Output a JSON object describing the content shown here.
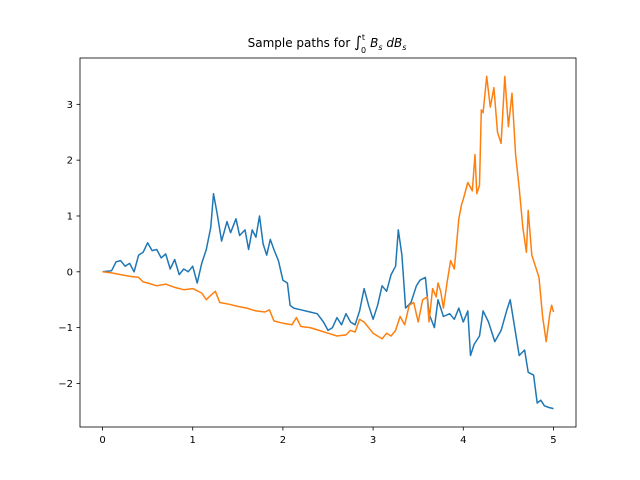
{
  "chart_data": {
    "type": "line",
    "title": "Sample paths for ∫₀ᵗ Bs dBs",
    "title_parts": {
      "prefix": "Sample paths for ",
      "integral": "∫",
      "upper": "t",
      "lower": "0",
      "integrand": "B",
      "integrand_sub": "s",
      "differential": " dB",
      "differential_sub": "s"
    },
    "xlabel": "",
    "ylabel": "",
    "xlim": [
      -0.25,
      5.25
    ],
    "ylim": [
      -2.78,
      3.83
    ],
    "xticks": [
      0,
      1,
      2,
      3,
      4,
      5
    ],
    "yticks": [
      -2,
      -1,
      0,
      1,
      2,
      3
    ],
    "grid": false,
    "legend": "none",
    "series": [
      {
        "color": "#1f77b4",
        "points": [
          [
            0,
            0
          ],
          [
            0.1,
            0.02
          ],
          [
            0.15,
            0.18
          ],
          [
            0.2,
            0.2
          ],
          [
            0.25,
            0.1
          ],
          [
            0.3,
            0.15
          ],
          [
            0.35,
            0.0
          ],
          [
            0.4,
            0.3
          ],
          [
            0.45,
            0.35
          ],
          [
            0.5,
            0.52
          ],
          [
            0.55,
            0.38
          ],
          [
            0.6,
            0.4
          ],
          [
            0.65,
            0.25
          ],
          [
            0.7,
            0.32
          ],
          [
            0.75,
            0.05
          ],
          [
            0.8,
            0.22
          ],
          [
            0.85,
            -0.05
          ],
          [
            0.9,
            0.05
          ],
          [
            0.95,
            0.0
          ],
          [
            1.0,
            0.1
          ],
          [
            1.05,
            -0.2
          ],
          [
            1.1,
            0.15
          ],
          [
            1.15,
            0.4
          ],
          [
            1.2,
            0.8
          ],
          [
            1.23,
            1.4
          ],
          [
            1.27,
            1.05
          ],
          [
            1.32,
            0.55
          ],
          [
            1.38,
            0.9
          ],
          [
            1.42,
            0.7
          ],
          [
            1.48,
            0.95
          ],
          [
            1.52,
            0.65
          ],
          [
            1.58,
            0.75
          ],
          [
            1.62,
            0.4
          ],
          [
            1.66,
            0.75
          ],
          [
            1.7,
            0.62
          ],
          [
            1.74,
            1.0
          ],
          [
            1.78,
            0.5
          ],
          [
            1.82,
            0.3
          ],
          [
            1.86,
            0.58
          ],
          [
            1.9,
            0.4
          ],
          [
            1.95,
            0.2
          ],
          [
            2.0,
            -0.15
          ],
          [
            2.05,
            -0.2
          ],
          [
            2.08,
            -0.6
          ],
          [
            2.12,
            -0.65
          ],
          [
            2.2,
            -0.68
          ],
          [
            2.3,
            -0.72
          ],
          [
            2.38,
            -0.75
          ],
          [
            2.45,
            -0.9
          ],
          [
            2.5,
            -1.05
          ],
          [
            2.55,
            -1.0
          ],
          [
            2.6,
            -0.82
          ],
          [
            2.65,
            -0.95
          ],
          [
            2.7,
            -0.75
          ],
          [
            2.75,
            -0.9
          ],
          [
            2.8,
            -0.95
          ],
          [
            2.85,
            -0.7
          ],
          [
            2.9,
            -0.3
          ],
          [
            2.95,
            -0.6
          ],
          [
            3.0,
            -0.85
          ],
          [
            3.05,
            -0.6
          ],
          [
            3.1,
            -0.25
          ],
          [
            3.15,
            -0.35
          ],
          [
            3.2,
            -0.05
          ],
          [
            3.25,
            0.1
          ],
          [
            3.28,
            0.75
          ],
          [
            3.32,
            0.3
          ],
          [
            3.36,
            -0.65
          ],
          [
            3.42,
            -0.55
          ],
          [
            3.48,
            -0.25
          ],
          [
            3.52,
            -0.15
          ],
          [
            3.58,
            -0.1
          ],
          [
            3.62,
            -0.75
          ],
          [
            3.68,
            -1.0
          ],
          [
            3.72,
            -0.5
          ],
          [
            3.78,
            -0.8
          ],
          [
            3.85,
            -0.75
          ],
          [
            3.9,
            -0.85
          ],
          [
            3.95,
            -0.65
          ],
          [
            4.0,
            -0.9
          ],
          [
            4.05,
            -0.7
          ],
          [
            4.08,
            -1.5
          ],
          [
            4.12,
            -1.3
          ],
          [
            4.18,
            -1.15
          ],
          [
            4.22,
            -0.7
          ],
          [
            4.28,
            -0.9
          ],
          [
            4.35,
            -1.25
          ],
          [
            4.42,
            -1.05
          ],
          [
            4.48,
            -0.7
          ],
          [
            4.52,
            -0.5
          ],
          [
            4.57,
            -1.0
          ],
          [
            4.62,
            -1.5
          ],
          [
            4.68,
            -1.4
          ],
          [
            4.72,
            -1.8
          ],
          [
            4.78,
            -1.85
          ],
          [
            4.82,
            -2.35
          ],
          [
            4.86,
            -2.3
          ],
          [
            4.9,
            -2.4
          ],
          [
            4.95,
            -2.43
          ],
          [
            5.0,
            -2.45
          ]
        ]
      },
      {
        "color": "#ff7f0e",
        "points": [
          [
            0,
            0
          ],
          [
            0.1,
            -0.02
          ],
          [
            0.2,
            -0.05
          ],
          [
            0.3,
            -0.08
          ],
          [
            0.4,
            -0.1
          ],
          [
            0.45,
            -0.18
          ],
          [
            0.5,
            -0.2
          ],
          [
            0.6,
            -0.25
          ],
          [
            0.7,
            -0.22
          ],
          [
            0.8,
            -0.28
          ],
          [
            0.9,
            -0.32
          ],
          [
            1.0,
            -0.3
          ],
          [
            1.1,
            -0.38
          ],
          [
            1.15,
            -0.5
          ],
          [
            1.2,
            -0.42
          ],
          [
            1.25,
            -0.35
          ],
          [
            1.3,
            -0.55
          ],
          [
            1.4,
            -0.58
          ],
          [
            1.5,
            -0.62
          ],
          [
            1.6,
            -0.65
          ],
          [
            1.7,
            -0.7
          ],
          [
            1.8,
            -0.72
          ],
          [
            1.85,
            -0.68
          ],
          [
            1.9,
            -0.88
          ],
          [
            2.0,
            -0.92
          ],
          [
            2.1,
            -0.95
          ],
          [
            2.15,
            -0.82
          ],
          [
            2.2,
            -0.98
          ],
          [
            2.3,
            -1.0
          ],
          [
            2.4,
            -1.05
          ],
          [
            2.5,
            -1.1
          ],
          [
            2.6,
            -1.15
          ],
          [
            2.7,
            -1.13
          ],
          [
            2.75,
            -1.05
          ],
          [
            2.8,
            -1.08
          ],
          [
            2.85,
            -0.85
          ],
          [
            2.9,
            -0.9
          ],
          [
            3.0,
            -1.1
          ],
          [
            3.05,
            -1.15
          ],
          [
            3.1,
            -1.2
          ],
          [
            3.15,
            -1.1
          ],
          [
            3.2,
            -1.15
          ],
          [
            3.25,
            -1.05
          ],
          [
            3.3,
            -0.8
          ],
          [
            3.35,
            -0.95
          ],
          [
            3.4,
            -0.6
          ],
          [
            3.45,
            -0.55
          ],
          [
            3.5,
            -0.9
          ],
          [
            3.55,
            -0.5
          ],
          [
            3.6,
            -0.45
          ],
          [
            3.62,
            -0.9
          ],
          [
            3.66,
            -0.3
          ],
          [
            3.7,
            -0.45
          ],
          [
            3.72,
            -0.2
          ],
          [
            3.75,
            -0.35
          ],
          [
            3.78,
            -0.65
          ],
          [
            3.82,
            -0.2
          ],
          [
            3.86,
            0.2
          ],
          [
            3.9,
            0.05
          ],
          [
            3.92,
            0.4
          ],
          [
            3.95,
            0.95
          ],
          [
            3.98,
            1.2
          ],
          [
            4.0,
            1.3
          ],
          [
            4.05,
            1.6
          ],
          [
            4.1,
            1.45
          ],
          [
            4.13,
            2.1
          ],
          [
            4.15,
            1.4
          ],
          [
            4.18,
            1.55
          ],
          [
            4.2,
            2.9
          ],
          [
            4.22,
            2.85
          ],
          [
            4.26,
            3.5
          ],
          [
            4.3,
            2.95
          ],
          [
            4.34,
            3.3
          ],
          [
            4.38,
            2.5
          ],
          [
            4.42,
            2.3
          ],
          [
            4.46,
            3.5
          ],
          [
            4.5,
            2.6
          ],
          [
            4.54,
            3.2
          ],
          [
            4.58,
            2.1
          ],
          [
            4.62,
            1.5
          ],
          [
            4.66,
            0.8
          ],
          [
            4.7,
            0.35
          ],
          [
            4.72,
            1.1
          ],
          [
            4.76,
            0.3
          ],
          [
            4.8,
            0.1
          ],
          [
            4.84,
            -0.1
          ],
          [
            4.88,
            -0.8
          ],
          [
            4.92,
            -1.25
          ],
          [
            4.96,
            -0.75
          ],
          [
            4.98,
            -0.6
          ],
          [
            5.0,
            -0.72
          ]
        ]
      }
    ]
  }
}
